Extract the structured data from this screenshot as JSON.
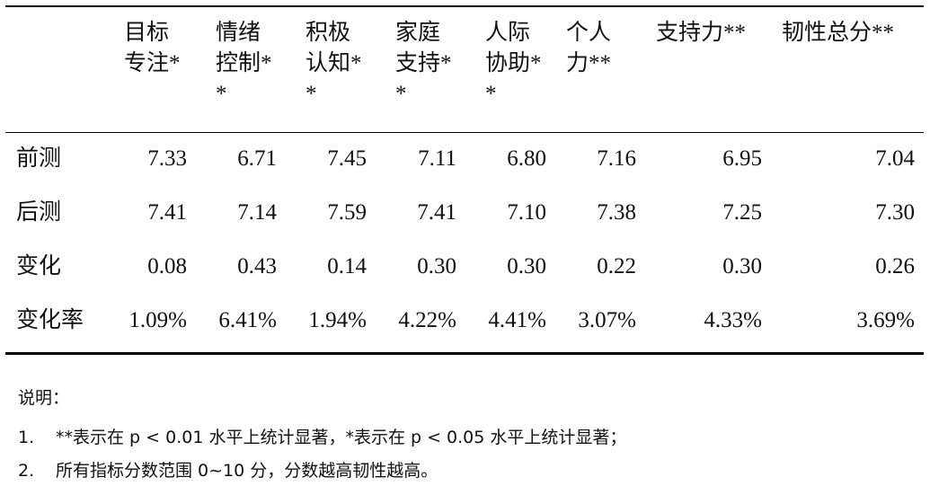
{
  "table": {
    "header": [
      "",
      "目标专注*",
      "情绪控制**",
      "积极认知**",
      "家庭支持**",
      "人际协助**",
      "个人力**",
      "支持力**",
      "韧性总分**"
    ],
    "rows": [
      [
        "前测",
        "7.33",
        "6.71",
        "7.45",
        "7.11",
        "6.80",
        "7.16",
        "6.95",
        "7.04"
      ],
      [
        "后测",
        "7.41",
        "7.14",
        "7.59",
        "7.41",
        "7.10",
        "7.38",
        "7.25",
        "7.30"
      ],
      [
        "变化",
        "0.08",
        "0.43",
        "0.14",
        "0.30",
        "0.30",
        "0.22",
        "0.30",
        "0.26"
      ],
      [
        "变化率",
        "1.09%",
        "6.41%",
        "1.94%",
        "4.22%",
        "4.41%",
        "3.07%",
        "4.33%",
        "3.69%"
      ]
    ]
  },
  "notes": {
    "title": "说明：",
    "items": [
      {
        "number": "1.",
        "text": "**表示在 p < 0.01 水平上统计显著，*表示在 p < 0.05 水平上统计显著；"
      },
      {
        "number": "2.",
        "text": "所有指标分数范围 0~10 分，分数越高韧性越高。"
      }
    ]
  }
}
